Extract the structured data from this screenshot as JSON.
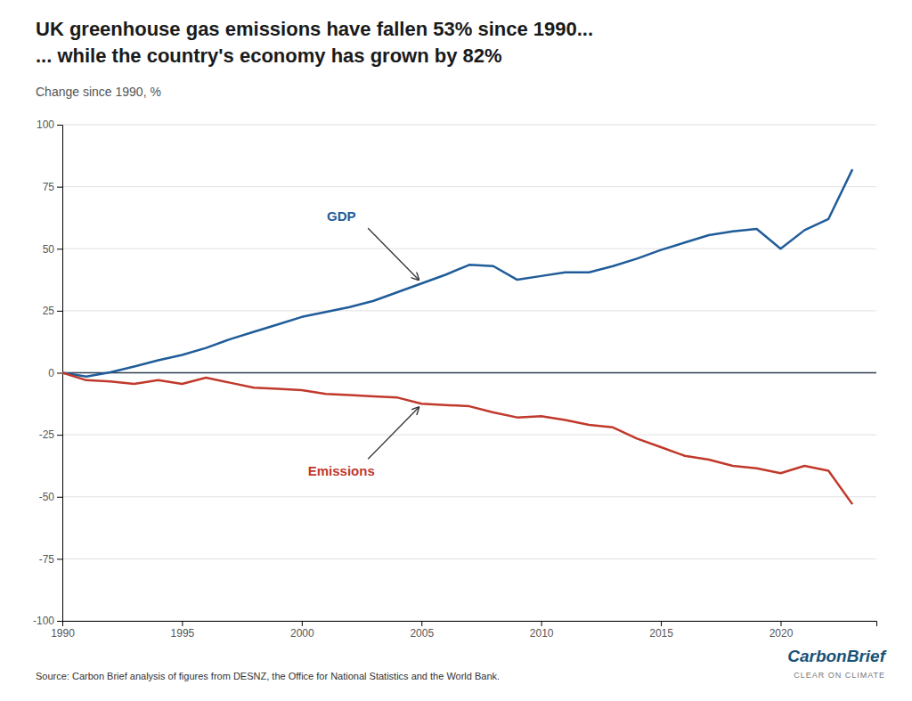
{
  "chart_data": {
    "type": "line",
    "title": [
      "UK greenhouse gas emissions have fallen 53% since 1990...",
      "... while the country's economy has grown by 82%"
    ],
    "subtitle": "Change since 1990, %",
    "source": "Source: Carbon Brief analysis of figures from DESNZ, the Office for National Statistics and the World Bank.",
    "annotations": [
      "CarbonBrief",
      "CLEAR ON CLIMATE"
    ],
    "x": [
      1990,
      1991,
      1992,
      1993,
      1994,
      1995,
      1996,
      1997,
      1998,
      1999,
      2000,
      2001,
      2002,
      2003,
      2004,
      2005,
      2006,
      2007,
      2008,
      2009,
      2010,
      2011,
      2012,
      2013,
      2014,
      2015,
      2016,
      2017,
      2018,
      2019,
      2020,
      2021,
      2022,
      2023
    ],
    "series": [
      {
        "name": "GDP",
        "color": "#1f5c99",
        "values": [
          0.0,
          -1.5,
          0.2,
          2.5,
          5.0,
          7.2,
          10.0,
          13.5,
          16.5,
          19.5,
          22.5,
          24.5,
          26.5,
          29.0,
          32.5,
          36.0,
          39.5,
          43.5,
          43.0,
          37.5,
          39.0,
          40.5,
          40.5,
          43.0,
          46.0,
          49.5,
          52.5,
          55.5,
          57.0,
          58.0,
          50.0,
          57.5,
          62.0,
          82.0
        ]
      },
      {
        "name": "Emissions",
        "color": "#c0392b",
        "values": [
          0.0,
          -3.0,
          -3.5,
          -4.5,
          -3.0,
          -4.5,
          -2.0,
          -4.0,
          -6.0,
          -6.5,
          -7.0,
          -8.5,
          -9.0,
          -9.5,
          -10.0,
          -12.5,
          -13.0,
          -13.5,
          -16.0,
          -18.0,
          -17.5,
          -19.0,
          -21.0,
          -22.0,
          -26.5,
          -30.0,
          -33.5,
          -35.0,
          -37.5,
          -38.5,
          -40.5,
          -37.5,
          -39.5,
          -53.0
        ]
      }
    ],
    "xlim": [
      1990,
      2024
    ],
    "xticks": [
      1990,
      1995,
      2000,
      2005,
      2010,
      2015,
      2020
    ],
    "ylim": [
      -100,
      100
    ],
    "yticks": [
      -100,
      -75,
      -50,
      -25,
      0,
      25,
      50,
      75,
      100
    ],
    "grid": true
  }
}
